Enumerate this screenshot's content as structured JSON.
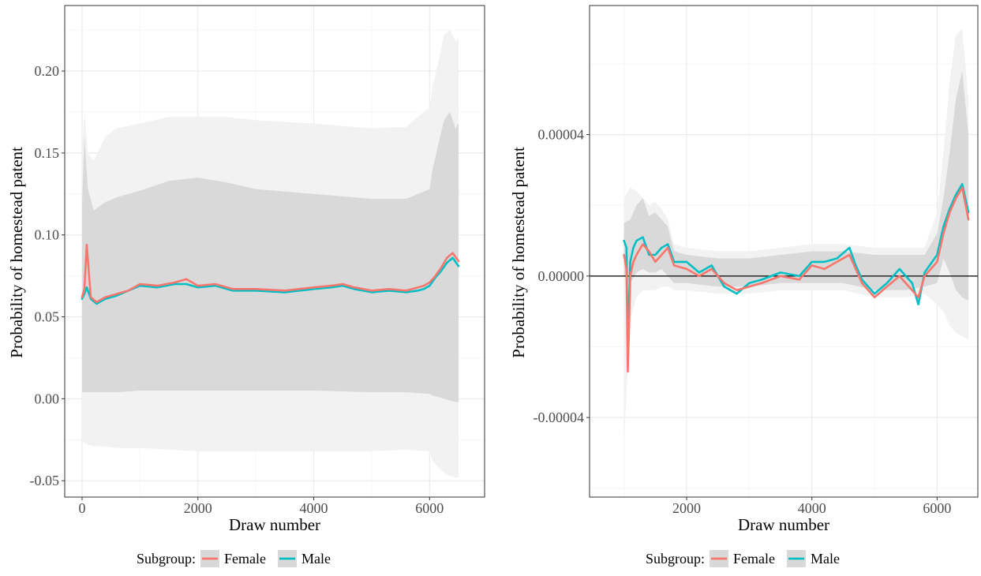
{
  "chart_data": [
    {
      "type": "line",
      "xlabel": "Draw number",
      "ylabel": "Probability of homestead patent",
      "xlim": [
        -300,
        6950
      ],
      "ylim": [
        -0.06,
        0.24
      ],
      "x_ticks": [
        0,
        2000,
        4000,
        6000
      ],
      "x_tick_labels": [
        "0",
        "2000",
        "4000",
        "6000"
      ],
      "y_ticks": [
        -0.05,
        0,
        0.05,
        0.1,
        0.15,
        0.2
      ],
      "y_tick_labels": [
        "-0.05",
        "0.00",
        "0.05",
        "0.10",
        "0.15",
        "0.20"
      ],
      "grid": true,
      "x": [
        0,
        40,
        80,
        150,
        250,
        400,
        600,
        800,
        1000,
        1300,
        1600,
        1800,
        2000,
        2300,
        2600,
        3000,
        3500,
        4000,
        4300,
        4500,
        4700,
        5000,
        5300,
        5600,
        5800,
        5900,
        6000,
        6100,
        6200,
        6300,
        6400,
        6500
      ],
      "series": [
        {
          "name": "Female",
          "color": "#F8766D",
          "values": [
            0.062,
            0.067,
            0.094,
            0.062,
            0.059,
            0.062,
            0.064,
            0.066,
            0.07,
            0.069,
            0.071,
            0.073,
            0.069,
            0.07,
            0.067,
            0.067,
            0.066,
            0.068,
            0.069,
            0.07,
            0.068,
            0.066,
            0.067,
            0.066,
            0.068,
            0.069,
            0.071,
            0.075,
            0.08,
            0.086,
            0.089,
            0.084
          ]
        },
        {
          "name": "Male",
          "color": "#00BFC4",
          "values": [
            0.061,
            0.064,
            0.068,
            0.061,
            0.058,
            0.061,
            0.063,
            0.066,
            0.069,
            0.068,
            0.07,
            0.07,
            0.068,
            0.069,
            0.066,
            0.066,
            0.065,
            0.067,
            0.068,
            0.069,
            0.067,
            0.065,
            0.066,
            0.065,
            0.066,
            0.067,
            0.069,
            0.074,
            0.078,
            0.083,
            0.086,
            0.081
          ]
        }
      ],
      "band_inner": {
        "x": [
          0,
          40,
          100,
          200,
          400,
          600,
          1000,
          1500,
          2000,
          2500,
          3000,
          4000,
          5000,
          5600,
          6000,
          6050,
          6150,
          6250,
          6350,
          6450,
          6500
        ],
        "lower": [
          0.004,
          0.004,
          0.004,
          0.004,
          0.004,
          0.004,
          0.005,
          0.005,
          0.005,
          0.005,
          0.005,
          0.005,
          0.004,
          0.004,
          0.003,
          0.002,
          0.001,
          0.0,
          -0.001,
          -0.002,
          -0.002
        ],
        "upper": [
          0.12,
          0.16,
          0.128,
          0.115,
          0.12,
          0.123,
          0.127,
          0.133,
          0.135,
          0.132,
          0.128,
          0.125,
          0.122,
          0.122,
          0.128,
          0.14,
          0.155,
          0.17,
          0.175,
          0.165,
          0.168
        ]
      },
      "band_outer": {
        "x": [
          0,
          40,
          100,
          200,
          400,
          600,
          1000,
          1500,
          2000,
          2500,
          3000,
          4000,
          5000,
          5600,
          6000,
          6050,
          6150,
          6250,
          6350,
          6450,
          6500
        ],
        "lower": [
          -0.025,
          -0.027,
          -0.028,
          -0.029,
          -0.029,
          -0.03,
          -0.03,
          -0.031,
          -0.032,
          -0.032,
          -0.032,
          -0.032,
          -0.032,
          -0.031,
          -0.032,
          -0.038,
          -0.042,
          -0.045,
          -0.047,
          -0.048,
          -0.048
        ],
        "upper": [
          0.15,
          0.175,
          0.15,
          0.145,
          0.16,
          0.165,
          0.168,
          0.172,
          0.172,
          0.172,
          0.17,
          0.168,
          0.165,
          0.166,
          0.178,
          0.19,
          0.205,
          0.222,
          0.225,
          0.218,
          0.22
        ]
      }
    },
    {
      "type": "line",
      "xlabel": "Draw number",
      "ylabel": "Probability of homestead patent",
      "xlim": [
        450,
        6650
      ],
      "ylim": [
        -6.25e-05,
        7.65e-05
      ],
      "x_ticks": [
        2000,
        4000,
        6000
      ],
      "x_tick_labels": [
        "2000",
        "4000",
        "6000"
      ],
      "y_ticks": [
        -4e-05,
        0,
        4e-05
      ],
      "y_tick_labels": [
        "-0.00004",
        "0.00000",
        "0.00004"
      ],
      "grid": true,
      "reference_line": 0,
      "x": [
        1000,
        1040,
        1060,
        1080,
        1100,
        1150,
        1200,
        1300,
        1400,
        1500,
        1600,
        1700,
        1800,
        2000,
        2200,
        2400,
        2600,
        2800,
        3000,
        3200,
        3500,
        3800,
        4000,
        4200,
        4400,
        4600,
        4700,
        4800,
        5000,
        5200,
        5400,
        5600,
        5700,
        5800,
        6000,
        6100,
        6200,
        6300,
        6400,
        6500
      ],
      "series": [
        {
          "name": "Female",
          "color": "#F8766D",
          "values": [
            6e-06,
            2e-06,
            -2.7e-05,
            -1.5e-05,
            0.0,
            4e-06,
            6e-06,
            9e-06,
            7e-06,
            4e-06,
            6e-06,
            8e-06,
            3e-06,
            2e-06,
            0.0,
            2e-06,
            -2e-06,
            -4e-06,
            -3e-06,
            -2e-06,
            0.0,
            -1e-06,
            3e-06,
            2e-06,
            4e-06,
            6e-06,
            2e-06,
            -2e-06,
            -6e-06,
            -3e-06,
            0.0,
            -4e-06,
            -6e-06,
            0.0,
            4e-06,
            1.2e-05,
            1.8e-05,
            2.2e-05,
            2.5e-05,
            1.6e-05
          ]
        },
        {
          "name": "Male",
          "color": "#00BFC4",
          "values": [
            1e-05,
            8e-06,
            -2e-05,
            -8e-06,
            4e-06,
            8e-06,
            1e-05,
            1.1e-05,
            6e-06,
            6e-06,
            8e-06,
            9e-06,
            4e-06,
            4e-06,
            1e-06,
            3e-06,
            -3e-06,
            -5e-06,
            -2e-06,
            -1e-06,
            1e-06,
            0.0,
            4e-06,
            4e-06,
            5e-06,
            8e-06,
            3e-06,
            -1e-06,
            -5e-06,
            -2e-06,
            2e-06,
            -2e-06,
            -8e-06,
            1e-06,
            6e-06,
            1.4e-05,
            1.9e-05,
            2.3e-05,
            2.6e-05,
            1.8e-05
          ]
        }
      ],
      "band_inner": {
        "x": [
          1000,
          1100,
          1200,
          1300,
          1400,
          1500,
          1600,
          1700,
          1800,
          2000,
          2500,
          3000,
          3500,
          4000,
          4500,
          5000,
          5500,
          5800,
          6000,
          6100,
          6200,
          6300,
          6400,
          6500
        ],
        "lower": [
          0.0,
          -2e-06,
          1e-06,
          2e-06,
          1e-06,
          1e-06,
          2e-06,
          0.0,
          -2e-06,
          -2e-06,
          -3e-06,
          -3e-06,
          -2e-06,
          -2e-06,
          -2e-06,
          -4e-06,
          -4e-06,
          -3e-06,
          -2e-06,
          5e-06,
          1e-06,
          -4e-06,
          -6e-06,
          -7e-06
        ],
        "upper": [
          1.5e-05,
          1.6e-05,
          2e-05,
          2.2e-05,
          1.7e-05,
          1.8e-05,
          1.6e-05,
          1.4e-05,
          7e-06,
          6e-06,
          5e-06,
          5e-06,
          6e-06,
          7e-06,
          7e-06,
          6e-06,
          6e-06,
          6e-06,
          1.2e-05,
          2.2e-05,
          3.5e-05,
          5e-05,
          5.8e-05,
          4e-05
        ]
      },
      "band_outer": {
        "x": [
          1000,
          1100,
          1200,
          1300,
          1400,
          1500,
          1600,
          1700,
          1800,
          2000,
          2500,
          3000,
          3500,
          4000,
          4500,
          5000,
          5500,
          5800,
          6000,
          6100,
          6200,
          6300,
          6400,
          6500
        ],
        "lower": [
          -4.8e-05,
          -1.2e-05,
          -6e-06,
          -4e-06,
          -4e-06,
          -4e-06,
          -3e-06,
          -3e-06,
          -4e-06,
          -4e-06,
          -5e-06,
          -5e-06,
          -4e-06,
          -4e-06,
          -4e-06,
          -6e-06,
          -6e-06,
          -5e-06,
          -8e-06,
          -1e-05,
          -1.4e-05,
          -1.6e-05,
          -1.7e-05,
          -1.8e-05
        ],
        "upper": [
          2.2e-05,
          2.5e-05,
          2.4e-05,
          2.2e-05,
          2e-05,
          2.1e-05,
          1.9e-05,
          1.6e-05,
          9e-06,
          8e-06,
          7e-06,
          7e-06,
          8e-06,
          9e-06,
          9e-06,
          8e-06,
          8e-06,
          8e-06,
          1.8e-05,
          3.5e-05,
          5.5e-05,
          6.8e-05,
          7e-05,
          5e-05
        ]
      }
    }
  ],
  "legend": {
    "title": "Subgroup:",
    "items": [
      {
        "label": "Female",
        "color": "#F8766D"
      },
      {
        "label": "Male",
        "color": "#00BFC4"
      }
    ]
  },
  "colors": {
    "band_outer": "#f2f2f2",
    "band_inner": "#d9d9d9",
    "grid_major": "#ebebeb",
    "grid_minor": "#f4f4f4",
    "panel_border": "#333333"
  }
}
